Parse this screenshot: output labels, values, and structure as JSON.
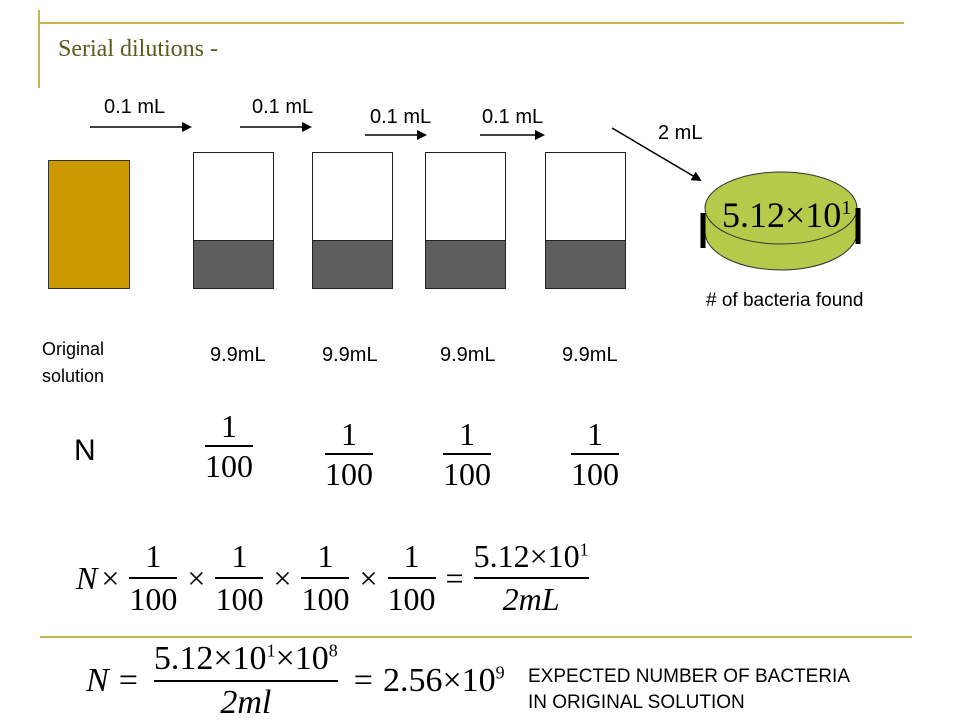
{
  "title": "Serial  dilutions -",
  "transfer_labels": [
    "0.1 mL",
    "0.1 mL",
    "0.1 mL",
    "0.1 mL",
    "2 mL"
  ],
  "original_label_line1": "Original",
  "original_label_line2": "solution",
  "diluent_labels": [
    "9.9mL",
    "9.9mL",
    "9.9mL",
    "9.9mL"
  ],
  "plate_count": "5.12×10",
  "plate_exp": "1",
  "plate_caption": "# of bacteria found",
  "n_symbol": "N",
  "fraction": {
    "num": "1",
    "den": "100"
  },
  "equation1": {
    "var": "N",
    "times": "×",
    "equals": "=",
    "rhs_num": "5.12×10",
    "rhs_num_exp": "1",
    "rhs_den": "2mL"
  },
  "equation2": {
    "var": "N",
    "equals": "=",
    "num": "5.12×10",
    "num_exp1": "1",
    "num_mid": "×10",
    "num_exp2": "8",
    "den": "2ml",
    "result": "2.56×10",
    "result_exp": "9"
  },
  "conclusion_line1": "EXPECTED NUMBER OF BACTERIA",
  "conclusion_line2": "IN ORIGINAL SOLUTION",
  "colors": {
    "accent_line": "#c8b450",
    "original_solution": "#cc9900",
    "diluent": "#5f5f5f",
    "plate": "#b5c94a",
    "title": "#5a5a1e"
  }
}
